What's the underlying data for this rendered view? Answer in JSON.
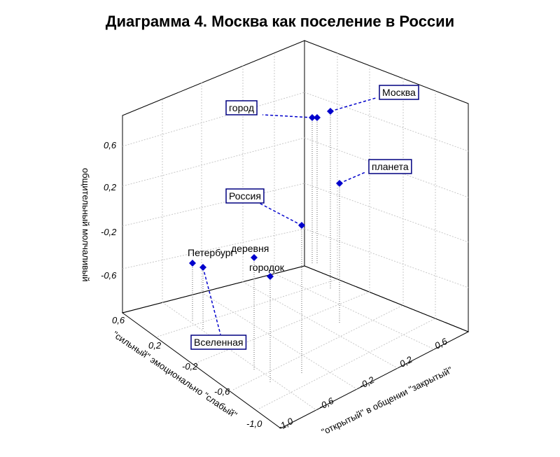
{
  "title": "Диаграмма 4. Москва как поселение в России",
  "chart_data": {
    "type": "scatter3d",
    "title": "Диаграмма 4. Москва как поселение в России",
    "axes": {
      "x": {
        "label": "\"открытый\" в общении \"закрытый\"",
        "ticks": [
          "-1,0",
          "-0,6",
          "-0,2",
          "0,2",
          "0,6"
        ]
      },
      "y": {
        "label": "\"сильный\" эмоционально \"слабый\"",
        "ticks": [
          "0,6",
          "0,2",
          "-0,2",
          "-0,6",
          "-1,0"
        ]
      },
      "z": {
        "label": "общительный молчаливый",
        "ticks": [
          "0,6",
          "0,2",
          "-0,2",
          "-0,6"
        ]
      }
    },
    "grid": true,
    "points": [
      {
        "label": "Москва",
        "boxed": true
      },
      {
        "label": "город",
        "boxed": true
      },
      {
        "label": "планета",
        "boxed": true
      },
      {
        "label": "Россия",
        "boxed": true
      },
      {
        "label": "деревня",
        "boxed": false
      },
      {
        "label": "Петербург",
        "boxed": false
      },
      {
        "label": "городок",
        "boxed": false
      },
      {
        "label": "Вселенная",
        "boxed": true
      }
    ],
    "colors": {
      "marker": "#0000cc",
      "label_box": "#000080"
    }
  }
}
